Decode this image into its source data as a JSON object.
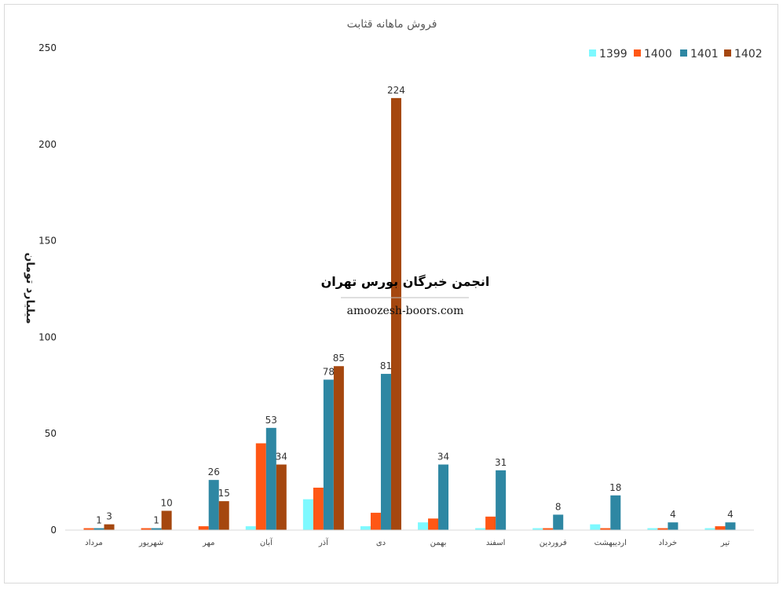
{
  "chart_data": {
    "type": "bar",
    "title": "فروش ماهانه قثابت",
    "ylabel": "میلیارد تومان",
    "xlabel": "",
    "ylim": [
      0,
      250
    ],
    "yticks": [
      0,
      50,
      100,
      150,
      200,
      250
    ],
    "grid": false,
    "legend_position": "top-right",
    "categories": [
      "مرداد",
      "شهریور",
      "مهر",
      "آبان",
      "آذر",
      "دی",
      "بهمن",
      "اسفند",
      "فروردین",
      "اردیبهشت",
      "خرداد",
      "تیر"
    ],
    "series": [
      {
        "name": "1399",
        "color": "#7ef9ff",
        "values": [
          0,
          0,
          0,
          2,
          16,
          2,
          4,
          1,
          1,
          3,
          1,
          1
        ],
        "labels": [
          null,
          null,
          null,
          null,
          null,
          null,
          null,
          null,
          null,
          null,
          null,
          null
        ]
      },
      {
        "name": "1400",
        "color": "#ff5715",
        "values": [
          1,
          1,
          2,
          45,
          22,
          9,
          6,
          7,
          1,
          1,
          1,
          2
        ],
        "labels": [
          null,
          null,
          null,
          null,
          null,
          null,
          null,
          null,
          null,
          null,
          null,
          null
        ]
      },
      {
        "name": "1401",
        "color": "#2e87a3",
        "values": [
          1,
          1,
          26,
          53,
          78,
          81,
          34,
          31,
          8,
          18,
          4,
          4
        ],
        "labels": [
          "1",
          "1",
          "26",
          "53",
          "78",
          "81",
          "34",
          "31",
          "8",
          "18",
          "4",
          "4"
        ]
      },
      {
        "name": "1402",
        "color": "#a5470f",
        "values": [
          3,
          10,
          15,
          34,
          85,
          224,
          null,
          null,
          null,
          null,
          null,
          null
        ],
        "labels": [
          "3",
          "10",
          "15",
          "34",
          "85",
          "224",
          null,
          null,
          null,
          null,
          null,
          null
        ]
      }
    ]
  },
  "watermark": {
    "title": "انجمن خبرگان بورس تهران",
    "url": "amoozesh-boors.com"
  }
}
